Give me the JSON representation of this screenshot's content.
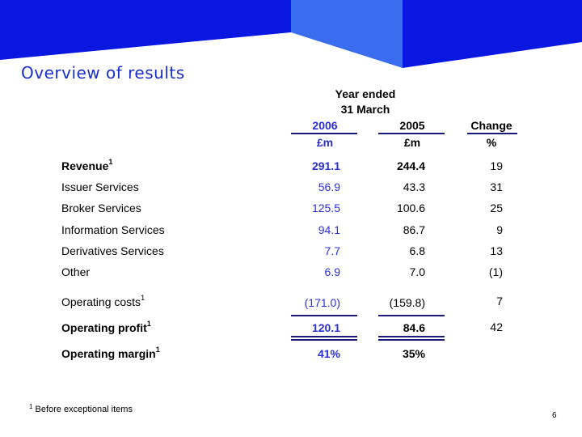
{
  "colors": {
    "navy_band": "#0a17e0",
    "light_band": "#3a6cf0",
    "title": "#1a2fc9",
    "accent": "#2a2fd6"
  },
  "title": "Overview of results",
  "header": {
    "year_ended_line1": "Year ended",
    "year_ended_line2": "31 March",
    "col_2006": "2006",
    "col_2005": "2005",
    "col_change": "Change",
    "unit_2006": "£m",
    "unit_2005": "£m",
    "unit_change": "%"
  },
  "rows": [
    {
      "label": "Revenue",
      "sup": "1",
      "v2006": "291.1",
      "v2005": "244.4",
      "change": "19"
    },
    {
      "label": "Issuer Services",
      "sup": "",
      "v2006": "56.9",
      "v2005": "43.3",
      "change": "31"
    },
    {
      "label": "Broker Services",
      "sup": "",
      "v2006": "125.5",
      "v2005": "100.6",
      "change": "25"
    },
    {
      "label": "Information Services",
      "sup": "",
      "v2006": "94.1",
      "v2005": "86.7",
      "change": "9"
    },
    {
      "label": "Derivatives Services",
      "sup": "",
      "v2006": "7.7",
      "v2005": "6.8",
      "change": "13"
    },
    {
      "label": "Other",
      "sup": "",
      "v2006": "6.9",
      "v2005": "7.0",
      "change": "(1)"
    },
    {
      "label": "Operating costs",
      "sup": "1",
      "v2006": "(171.0)",
      "v2005": "(159.8)",
      "change": "7"
    },
    {
      "label": "Operating profit",
      "sup": "1",
      "v2006": "120.1",
      "v2005": "84.6",
      "change": "42"
    },
    {
      "label": "Operating margin",
      "sup": "1",
      "v2006": "41%",
      "v2005": "35%",
      "change": ""
    }
  ],
  "footnote": {
    "mark": "1",
    "text": "Before exceptional items"
  },
  "page_number": "6"
}
